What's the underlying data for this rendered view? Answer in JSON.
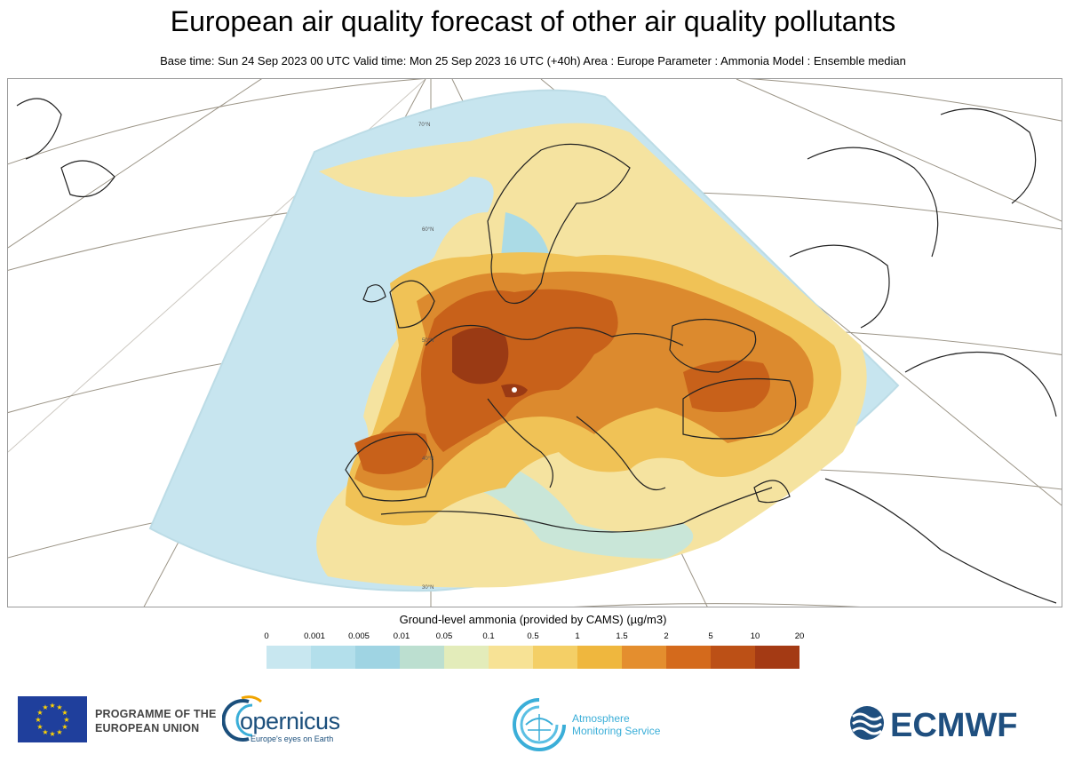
{
  "title": "European air quality forecast of other air quality pollutants",
  "subtitle": "Base time: Sun 24 Sep 2023 00 UTC Valid time: Mon 25 Sep 2023 16 UTC (+40h) Area : Europe Parameter : Ammonia Model : Ensemble median",
  "map": {
    "latitude_labels": [
      "70°N",
      "60°N",
      "50°N",
      "40°N",
      "30°N"
    ],
    "colors": {
      "sea": "#c7e5ef",
      "very_low": "#abdbe6",
      "low": "#f5e3a0",
      "mid": "#f0c256",
      "high": "#dc8a2e",
      "very_high": "#c8611a",
      "peak": "#9a3a14",
      "coast": "#222222",
      "graticule": "#9b9486"
    }
  },
  "legend": {
    "title": "Ground-level ammonia (provided by CAMS) (µg/m3)",
    "ticks": [
      "0",
      "0.001",
      "0.005",
      "0.01",
      "0.05",
      "0.1",
      "0.5",
      "1",
      "1.5",
      "2",
      "5",
      "10",
      "20"
    ],
    "colors": [
      "#c8e7f0",
      "#b3dfeb",
      "#9fd4e3",
      "#bcdfd0",
      "#e3ecba",
      "#f7e295",
      "#f4cf66",
      "#efb73e",
      "#e48e2e",
      "#d46a1c",
      "#bc5016",
      "#a43a14",
      "#8a2a14"
    ]
  },
  "footer": {
    "eu_line1": "PROGRAMME OF THE",
    "eu_line2": "EUROPEAN UNION",
    "copernicus_word": "opernicus",
    "copernicus_tagline": "Europe's eyes on Earth",
    "cams_line1": "Atmosphere",
    "cams_line2": "Monitoring Service",
    "ecmwf": "ECMWF"
  }
}
